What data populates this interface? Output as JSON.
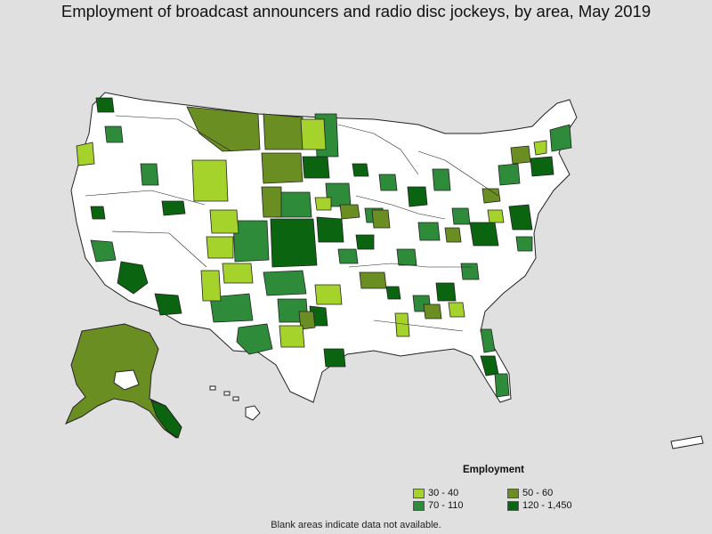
{
  "title": "Employment of broadcast announcers and radio disc jockeys, by area, May 2019",
  "legend": {
    "title": "Employment",
    "items": [
      {
        "label": "30 - 40",
        "color": "#a6d22c"
      },
      {
        "label": "50 - 60",
        "color": "#6b8e23"
      },
      {
        "label": "70 - 110",
        "color": "#2e8b3a"
      },
      {
        "label": "120 - 1,450",
        "color": "#0b6410"
      }
    ]
  },
  "footnote": "Blank areas indicate data not available.",
  "colors": {
    "background": "#e0e0e0",
    "land_blank": "#ffffff",
    "border": "#222222"
  }
}
